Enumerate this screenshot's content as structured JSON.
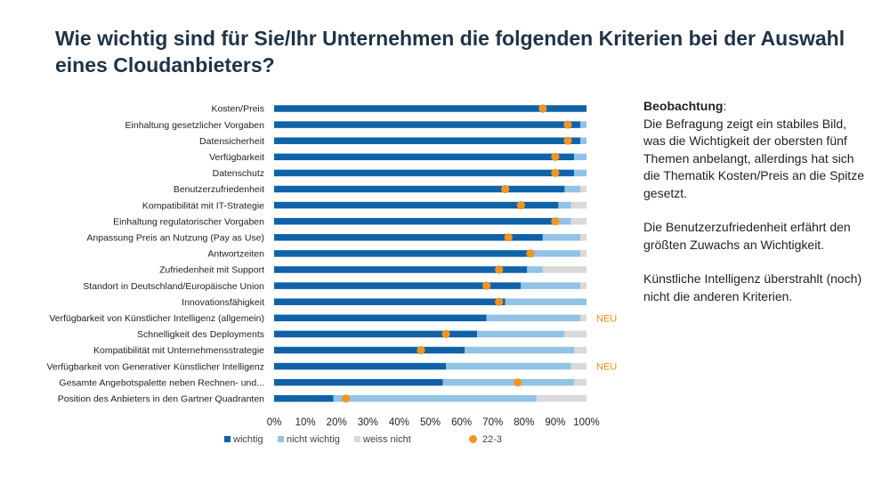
{
  "title": "Wie wichtig sind für Sie/Ihr Unternehmen die folgenden Kriterien bei der Auswahl eines Cloudanbieters?",
  "observation": {
    "heading": "Beobachtung",
    "heading_suffix": ":",
    "paragraph1": "Die Befragung zeigt ein stabiles Bild, was die Wichtigkeit der obersten fünf Themen anbelangt, allerdings hat sich die Thematik Kosten/Preis an die Spitze gesetzt.",
    "paragraph2": "Die Benutzerzufriedenheit erfährt den größten Zuwachs an Wichtigkeit.",
    "paragraph3": "Künstliche Intelligenz überstrahlt (noch) nicht die anderen Kriterien."
  },
  "chart_data": {
    "type": "bar",
    "orientation": "horizontal",
    "stacked": true,
    "categories": [
      "Kosten/Preis",
      "Einhaltung gesetzlicher Vorgaben",
      "Datensicherheit",
      "Verfügbarkeit",
      "Datenschutz",
      "Benutzerzufriedenheit",
      "Kompatibilität mit IT-Strategie",
      "Einhaltung regulatorischer Vorgaben",
      "Anpassung Preis an Nutzung (Pay as Use)",
      "Antwortzeiten",
      "Zufriedenheit mit Support",
      "Standort in Deutschland/Europäische Union",
      "Innovationsfähigkeit",
      "Verfügbarkeit von Künstlicher Intelligenz (allgemein)",
      "Schnelligkeit des Deployments",
      "Kompatibilität mit Unternehmensstrategie",
      "Verfügbarkeit von Generativer Künstlicher Intelligenz",
      "Gesamte Angebotspalette neben Rechnen- und...",
      "Position des Anbieters in den Gartner Quadranten"
    ],
    "series": [
      {
        "name": "wichtig",
        "color": "#0f62a8",
        "values": [
          100,
          98,
          98,
          96,
          96,
          93,
          91,
          91,
          86,
          83,
          81,
          79,
          74,
          68,
          65,
          61,
          55,
          54,
          19
        ]
      },
      {
        "name": "nicht wichtig",
        "color": "#92c2e4",
        "values": [
          0,
          2,
          2,
          4,
          4,
          5,
          4,
          4,
          12,
          15,
          5,
          19,
          26,
          30,
          28,
          35,
          40,
          42,
          65
        ]
      },
      {
        "name": "weiss nicht",
        "color": "#d9d9d9",
        "values": [
          0,
          0,
          0,
          0,
          0,
          2,
          5,
          5,
          2,
          2,
          14,
          2,
          0,
          2,
          7,
          4,
          5,
          4,
          16
        ]
      }
    ],
    "markers": {
      "name": "22-3",
      "color": "#f0961e",
      "values": [
        86,
        94,
        94,
        90,
        90,
        74,
        79,
        90,
        75,
        82,
        72,
        68,
        72,
        null,
        55,
        47,
        null,
        78,
        23
      ]
    },
    "annotations": [
      {
        "category": "Verfügbarkeit von Künstlicher Intelligenz (allgemein)",
        "text": "NEU"
      },
      {
        "category": "Verfügbarkeit von Generativer Künstlicher Intelligenz",
        "text": "NEU"
      }
    ],
    "xticks": [
      "0%",
      "10%",
      "20%",
      "30%",
      "40%",
      "50%",
      "60%",
      "70%",
      "80%",
      "90%",
      "100%"
    ],
    "xlim": [
      0,
      100
    ],
    "grid": false,
    "legend_position": "bottom"
  }
}
